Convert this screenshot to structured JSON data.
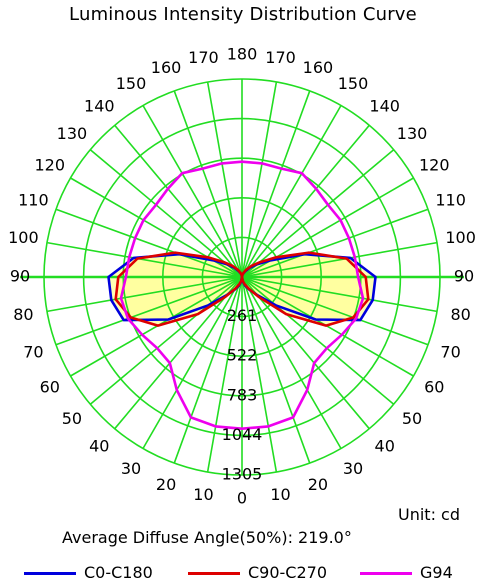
{
  "chart_data": {
    "type": "polar",
    "title": "Luminous Intensity Distribution Curve",
    "unit_label": "Unit: cd",
    "diffuse_label": "Average Diffuse Angle(50%): 219.0°",
    "radial_ticks": [
      "261",
      "522",
      "783",
      "1044",
      "1305"
    ],
    "radial_max": 1305,
    "angle_labels_left": [
      "0",
      "10",
      "20",
      "30",
      "40",
      "50",
      "60",
      "70",
      "80",
      "90",
      "100",
      "110",
      "120",
      "130",
      "140",
      "150",
      "160",
      "170"
    ],
    "angle_labels_right": [
      "10",
      "20",
      "30",
      "40",
      "50",
      "60",
      "70",
      "80",
      "90",
      "100",
      "110",
      "120",
      "130",
      "140",
      "150",
      "160",
      "170"
    ],
    "angle_label_top": "180",
    "grid": true,
    "angles": [
      0,
      10,
      20,
      30,
      40,
      50,
      60,
      70,
      80,
      90,
      100,
      110,
      120,
      130,
      140,
      150,
      160,
      170,
      180
    ],
    "series": [
      {
        "name": "C0-C180",
        "color": "#0000dd",
        "left": [
          0,
          30,
          60,
          95,
          155,
          290,
          560,
          830,
          875,
          880,
          725,
          440,
          220,
          130,
          80,
          45,
          25,
          12,
          0
        ],
        "right": [
          0,
          30,
          60,
          95,
          155,
          290,
          560,
          830,
          875,
          880,
          725,
          440,
          220,
          130,
          80,
          45,
          25,
          12,
          0
        ]
      },
      {
        "name": "C90-C270",
        "color": "#dd0000",
        "left": [
          0,
          25,
          50,
          90,
          170,
          380,
          640,
          780,
          845,
          815,
          700,
          470,
          260,
          150,
          95,
          55,
          30,
          14,
          0
        ],
        "right": [
          0,
          25,
          50,
          90,
          170,
          380,
          640,
          780,
          845,
          815,
          700,
          470,
          260,
          150,
          95,
          55,
          30,
          14,
          0
        ]
      },
      {
        "name": "G94",
        "color": "#ee00ee",
        "left": [
          1000,
          1000,
          985,
          860,
          740,
          730,
          760,
          800,
          810,
          765,
          755,
          750,
          750,
          740,
          760,
          790,
          760,
          760,
          760
        ],
        "right": [
          1000,
          1000,
          985,
          860,
          740,
          730,
          760,
          800,
          810,
          765,
          755,
          750,
          750,
          740,
          760,
          790,
          760,
          760,
          760
        ]
      }
    ]
  }
}
